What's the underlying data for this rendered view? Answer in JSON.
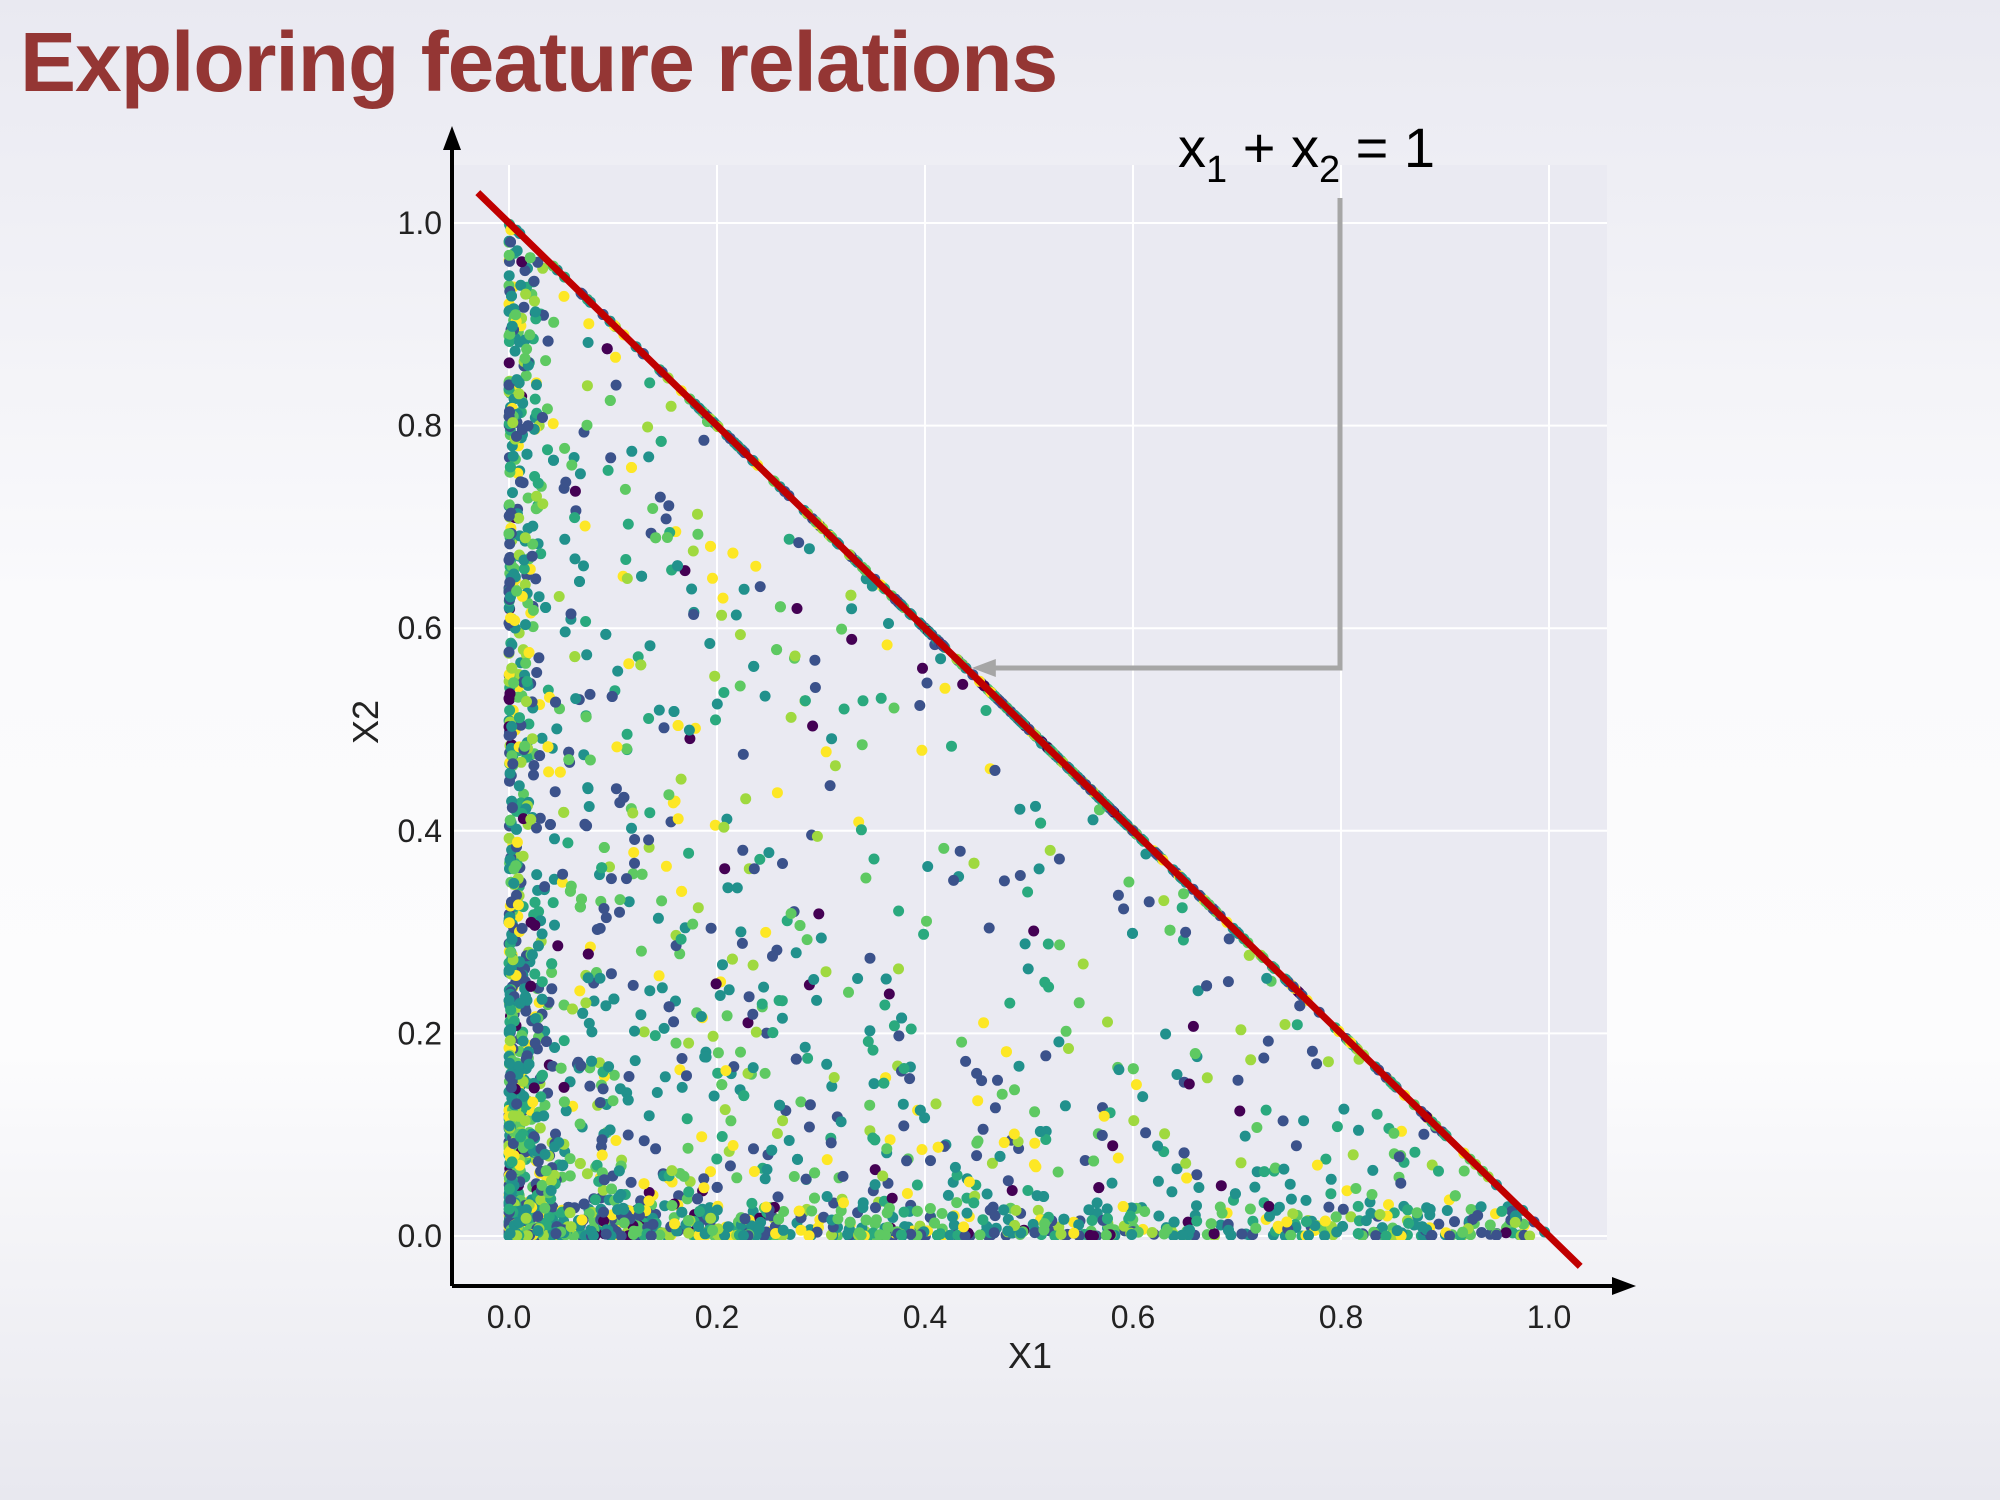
{
  "slide": {
    "title": "Exploring feature relations"
  },
  "colors": {
    "title": "#943634",
    "plot_background": "#eaeaf2",
    "grid": "#ffffff",
    "line": "#c00000",
    "annotation_arrow": "#a6a6a6",
    "palette": [
      "#440154",
      "#3b528b",
      "#21918c",
      "#2aa97e",
      "#5ec962",
      "#9fd93f",
      "#fde725"
    ]
  },
  "chart_data": {
    "type": "scatter",
    "xlabel": "X1",
    "ylabel": "X2",
    "xlim": [
      -0.055,
      1.055
    ],
    "ylim": [
      -0.05,
      1.07
    ],
    "xticks": [
      "0.0",
      "0.2",
      "0.4",
      "0.6",
      "0.8",
      "1.0"
    ],
    "yticks": [
      "0.0",
      "0.2",
      "0.4",
      "0.6",
      "0.8",
      "1.0"
    ],
    "grid": true,
    "colormap": "viridis",
    "point_count_approx": 3000,
    "description_points": "points lie in the triangle x1 >= 0, x2 >= 0, x1 + x2 <= 1, densest near the origin and along both axes",
    "line": {
      "x": [
        -0.03,
        1.03
      ],
      "y": [
        1.03,
        -0.03
      ],
      "color": "#c00000"
    },
    "annotation": {
      "text_parts": [
        "x",
        "1",
        " + x",
        "2",
        " = 1"
      ],
      "arrow_target": [
        0.445,
        0.56
      ]
    }
  }
}
